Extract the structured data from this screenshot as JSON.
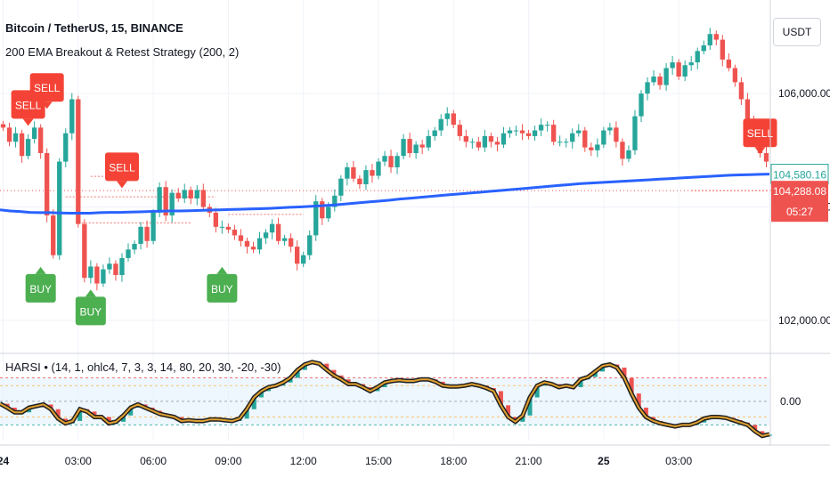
{
  "header": {
    "symbol_title": "Bitcoin / TetherUS, 15, BINANCE",
    "strategy_label": "200 EMA Breakout & Retest Strategy (200, 2)",
    "currency_unit": "USDT"
  },
  "oscillator": {
    "label": "HARSI • (14, 1, ohlc4, 7, 3, 3, 14, 80, 20, 30, -20, -30)",
    "zero_label": "0.00",
    "ylim": [
      -50,
      60
    ],
    "rsi_line": [
      -3,
      -8,
      -14,
      -14,
      -8,
      -6,
      -4,
      -10,
      -22,
      -28,
      -25,
      -10,
      -13,
      -20,
      -20,
      -28,
      -26,
      -18,
      -8,
      -4,
      -8,
      -12,
      -16,
      -18,
      -20,
      -25,
      -24,
      -25,
      -25,
      -23,
      -23,
      -24,
      -25,
      -22,
      -10,
      5,
      13,
      18,
      20,
      24,
      30,
      40,
      47,
      50,
      48,
      40,
      33,
      28,
      22,
      22,
      18,
      13,
      18,
      24,
      26,
      27,
      26,
      26,
      28,
      28,
      25,
      20,
      19,
      19,
      20,
      22,
      20,
      17,
      13,
      -5,
      -20,
      -26,
      -18,
      5,
      20,
      24,
      22,
      18,
      20,
      18,
      28,
      31,
      38,
      45,
      47,
      43,
      30,
      10,
      -8,
      -20,
      -25,
      -28,
      -30,
      -32,
      -30,
      -30,
      -27,
      -22,
      -20,
      -20,
      -21,
      -24,
      -27,
      -30,
      -38,
      -44,
      -42
    ]
  },
  "chart_data": {
    "type": "candlestick",
    "title": "Bitcoin / TetherUS, 15, BINANCE",
    "ylim": [
      101450,
      107650
    ],
    "y_ticks": [
      102000,
      104000,
      106000
    ],
    "y_tick_labels": [
      "102,000.00",
      "104,000.00",
      "106,000.00"
    ],
    "x_tick_labels": [
      "24",
      "03:00",
      "06:00",
      "09:00",
      "12:00",
      "15:00",
      "18:00",
      "21:00",
      "25",
      "03:00"
    ],
    "x_tick_bars": [
      0,
      12,
      24,
      36,
      48,
      60,
      72,
      84,
      96,
      108
    ],
    "bars_shown": 123,
    "closes": [
      105400,
      105150,
      105300,
      104900,
      105200,
      105400,
      104950,
      103850,
      103150,
      104800,
      105300,
      105900,
      103700,
      102750,
      102950,
      102650,
      102900,
      103000,
      102800,
      103100,
      103250,
      103350,
      103650,
      103400,
      103900,
      104350,
      103850,
      104250,
      104150,
      104300,
      104150,
      104300,
      104000,
      103900,
      103650,
      103650,
      103600,
      103500,
      103400,
      103300,
      103250,
      103450,
      103550,
      103700,
      103400,
      103450,
      103300,
      103000,
      103150,
      103500,
      104100,
      103800,
      104000,
      104200,
      104500,
      104700,
      104500,
      104400,
      104650,
      104550,
      104800,
      104900,
      104700,
      104900,
      105200,
      104950,
      105100,
      105050,
      105250,
      105350,
      105550,
      105650,
      105450,
      105250,
      105150,
      105150,
      105050,
      105250,
      105150,
      105100,
      105300,
      105350,
      105350,
      105300,
      105250,
      105350,
      105450,
      105450,
      105150,
      105150,
      105150,
      105300,
      105350,
      105050,
      105000,
      105100,
      105350,
      105400,
      105150,
      104850,
      105000,
      105600,
      106000,
      106200,
      106300,
      106150,
      106450,
      106550,
      106300,
      106500,
      106550,
      106750,
      106850,
      107050,
      106950,
      106600,
      106450,
      106200,
      105900,
      105550,
      105400,
      104950,
      104800,
      104700,
      104650,
      104750,
      104850,
      104700,
      104950,
      104850,
      104600,
      104750,
      104300
    ],
    "ema_200": [
      103950,
      103930,
      103920,
      103905,
      103900,
      103900,
      103895,
      103890,
      103890,
      103890,
      103900,
      103905,
      103905,
      103910,
      103915,
      103920,
      103925,
      103930,
      103930,
      103935,
      103940,
      103945,
      103950,
      103955,
      103960,
      103965,
      103970,
      103975,
      103985,
      103995,
      104000,
      104010,
      104020,
      104030,
      104045,
      104060,
      104075,
      104090,
      104105,
      104120,
      104140,
      104155,
      104170,
      104185,
      104200,
      104215,
      104230,
      104245,
      104260,
      104275,
      104290,
      104305,
      104320,
      104335,
      104350,
      104365,
      104380,
      104395,
      104410,
      104420,
      104430,
      104440,
      104450,
      104460,
      104470,
      104480,
      104490,
      104500,
      104510,
      104520,
      104530,
      104540,
      104550,
      104560,
      104565,
      104570,
      104575,
      104580
    ],
    "signals": [
      {
        "type": "sell",
        "label": "SELL",
        "bar": 4,
        "price": 105400
      },
      {
        "type": "sell",
        "label": "SELL",
        "bar": 7,
        "price": 105700
      },
      {
        "type": "sell",
        "label": "SELL",
        "bar": 19,
        "price": 104300
      },
      {
        "type": "buy",
        "label": "BUY",
        "bar": 6,
        "price": 103100
      },
      {
        "type": "buy",
        "label": "BUY",
        "bar": 14,
        "price": 102700
      },
      {
        "type": "buy",
        "label": "BUY",
        "bar": 35,
        "price": 103100
      },
      {
        "type": "sell",
        "label": "SELL",
        "bar": 121,
        "price": 104900
      }
    ],
    "price_labels": [
      {
        "name": "ema",
        "text": "104,580.16",
        "price": 104580.16,
        "color": "#26a69a"
      },
      {
        "name": "last",
        "text": "104,288.08",
        "price": 104288.08,
        "color": "#ef5350"
      },
      {
        "name": "countdown",
        "text": "05:27",
        "color": "#ef5350"
      }
    ]
  },
  "colors": {
    "up": "#26a69a",
    "down": "#ef5350",
    "ema": "#2962ff",
    "buy": "#4caf50",
    "sell": "#f44336",
    "grid": "#f0f3fa",
    "axis_text": "#131722"
  }
}
